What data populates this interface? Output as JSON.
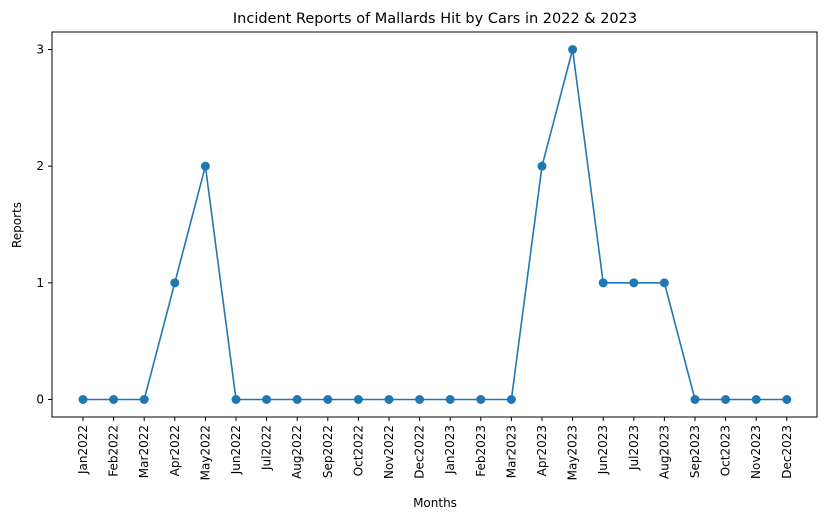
{
  "chart_data": {
    "type": "line",
    "title": "Incident Reports of Mallards Hit by Cars in 2022 & 2023",
    "xlabel": "Months",
    "ylabel": "Reports",
    "categories": [
      "Jan2022",
      "Feb2022",
      "Mar2022",
      "Apr2022",
      "May2022",
      "Jun2022",
      "Jul2022",
      "Aug2022",
      "Sep2022",
      "Oct2022",
      "Nov2022",
      "Dec2022",
      "Jan2023",
      "Feb2023",
      "Mar2023",
      "Apr2023",
      "May2023",
      "Jun2023",
      "Jul2023",
      "Aug2023",
      "Sep2023",
      "Oct2023",
      "Nov2023",
      "Dec2023"
    ],
    "series": [
      {
        "values": [
          0,
          0,
          0,
          1,
          2,
          0,
          0,
          0,
          0,
          0,
          0,
          0,
          0,
          0,
          0,
          2,
          3,
          1,
          1,
          1,
          0,
          0,
          0,
          0
        ]
      }
    ],
    "yticks": [
      0,
      1,
      2,
      3
    ],
    "ylim": [
      -0.15,
      3.15
    ],
    "grid": false,
    "legend": "none",
    "colors": {
      "line": "#1f77b4",
      "marker": "#1f77b4",
      "axis": "#000000"
    }
  }
}
